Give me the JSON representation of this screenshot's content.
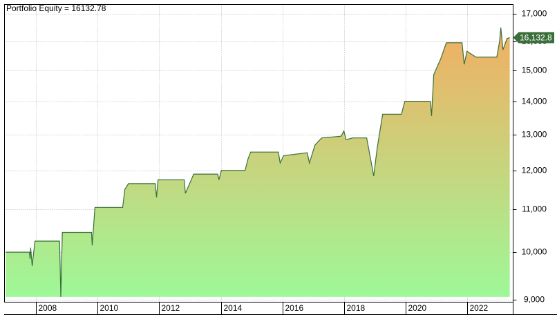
{
  "chart_data": {
    "type": "area",
    "title": "Portfolio Equity = 16132.78",
    "log_scale": true,
    "grid": true,
    "x": [
      2007.01,
      2007.78,
      2007.8,
      2007.82,
      2007.87,
      2007.96,
      2008.76,
      2008.8,
      2008.85,
      2009.8,
      2009.82,
      2009.91,
      2010.81,
      2010.88,
      2011.0,
      2011.87,
      2011.91,
      2011.96,
      2012.81,
      2012.85,
      2013.12,
      2013.9,
      2013.94,
      2014.02,
      2014.79,
      2014.88,
      2014.97,
      2015.87,
      2015.93,
      2016.04,
      2016.81,
      2016.88,
      2017.06,
      2017.28,
      2017.91,
      2018.0,
      2018.07,
      2018.29,
      2018.74,
      2018.97,
      2019.08,
      2019.26,
      2019.87,
      2019.98,
      2020.81,
      2020.85,
      2020.92,
      2021.15,
      2021.33,
      2021.84,
      2021.91,
      2022.0,
      2022.29,
      2022.97,
      2023.06,
      2023.1,
      2023.17,
      2023.3,
      2023.39
    ],
    "series": [
      {
        "name": "Portfolio Equity",
        "line_color": "#3a6e3a",
        "fill_colors": [
          "#9ef898",
          "#f2ae62"
        ],
        "values": [
          10000,
          10000,
          9850,
          10100,
          9700,
          10250,
          10250,
          9050,
          10450,
          10450,
          10150,
          11050,
          11050,
          11500,
          11650,
          11650,
          11300,
          11750,
          11750,
          11400,
          11900,
          11900,
          11750,
          12000,
          12000,
          12300,
          12500,
          12500,
          12200,
          12400,
          12480,
          12200,
          12700,
          12900,
          12950,
          13100,
          12850,
          12900,
          12900,
          11850,
          12600,
          13600,
          13600,
          14000,
          14000,
          13550,
          14850,
          15400,
          15950,
          15950,
          15200,
          15650,
          15450,
          15450,
          16000,
          16500,
          15700,
          16100,
          16132.78
        ],
        "value_labels": [
          null,
          null,
          null,
          null,
          null,
          null,
          null,
          null,
          null,
          null,
          null,
          null,
          null,
          null,
          null,
          null,
          null,
          null,
          null,
          null,
          null,
          null,
          null,
          null,
          null,
          null,
          null,
          null,
          null,
          null,
          null,
          null,
          null,
          null,
          null,
          null,
          null,
          null,
          null,
          null,
          null,
          null,
          null,
          null,
          null,
          null,
          null,
          null,
          null,
          null,
          null,
          null,
          null,
          null,
          null,
          null,
          null,
          null,
          "16,132.8"
        ]
      }
    ],
    "xlim": [
      2006.97,
      2023.5
    ],
    "xticks": [
      2008,
      2010,
      2012,
      2014,
      2016,
      2018,
      2020,
      2022
    ],
    "ylim": [
      8945,
      17370
    ],
    "yticks": [
      {
        "value": 9000,
        "label": "9,000"
      },
      {
        "value": 10000,
        "label": "10,000"
      },
      {
        "value": 11000,
        "label": "11,000"
      },
      {
        "value": 12000,
        "label": "12,000"
      },
      {
        "value": 13000,
        "label": "13,000"
      },
      {
        "value": 14000,
        "label": "14,000"
      },
      {
        "value": 15000,
        "label": "15,000"
      },
      {
        "value": 16000,
        "label": "16,000"
      },
      {
        "value": 17000,
        "label": "17,000"
      }
    ]
  }
}
